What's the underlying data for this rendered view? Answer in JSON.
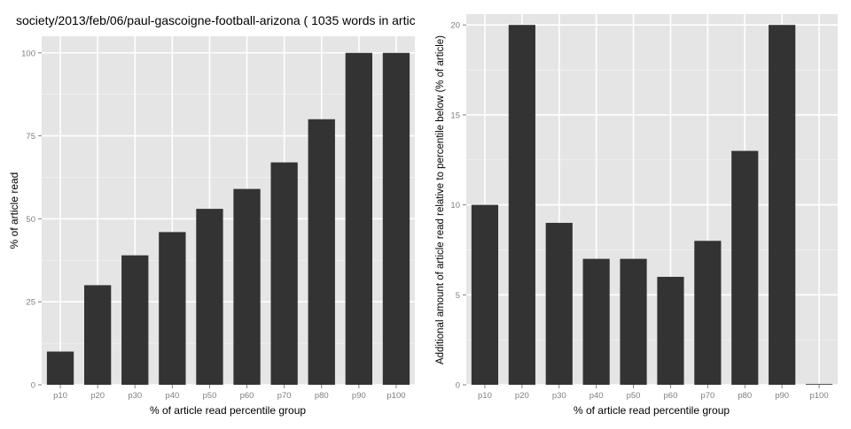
{
  "chart_data": [
    {
      "type": "bar",
      "title": "society/2013/feb/06/paul-gascoigne-football-arizona ( 1035 words in artic",
      "xlabel": "% of article read percentile group",
      "ylabel": "% of article read",
      "categories": [
        "p10",
        "p20",
        "p30",
        "p40",
        "p50",
        "p60",
        "p70",
        "p80",
        "p90",
        "p100"
      ],
      "values": [
        10,
        30,
        39,
        46,
        53,
        59,
        67,
        80,
        100,
        100
      ],
      "ylim": [
        0,
        105
      ],
      "yticks": [
        0,
        25,
        50,
        75,
        100
      ],
      "grid": true,
      "bar_color": "#333333",
      "panel_color": "#e5e5e5"
    },
    {
      "type": "bar",
      "title": "",
      "xlabel": "% of article read percentile group",
      "ylabel": "Additional amount of article read relative to percentile below (% of article)",
      "categories": [
        "p10",
        "p20",
        "p30",
        "p40",
        "p50",
        "p60",
        "p70",
        "p80",
        "p90",
        "p100"
      ],
      "values": [
        10,
        20,
        9,
        7,
        7,
        6,
        8,
        13,
        20,
        0
      ],
      "ylim": [
        0,
        20.6
      ],
      "yticks": [
        0,
        5,
        10,
        15,
        20
      ],
      "grid": true,
      "bar_color": "#333333",
      "panel_color": "#e5e5e5"
    }
  ]
}
